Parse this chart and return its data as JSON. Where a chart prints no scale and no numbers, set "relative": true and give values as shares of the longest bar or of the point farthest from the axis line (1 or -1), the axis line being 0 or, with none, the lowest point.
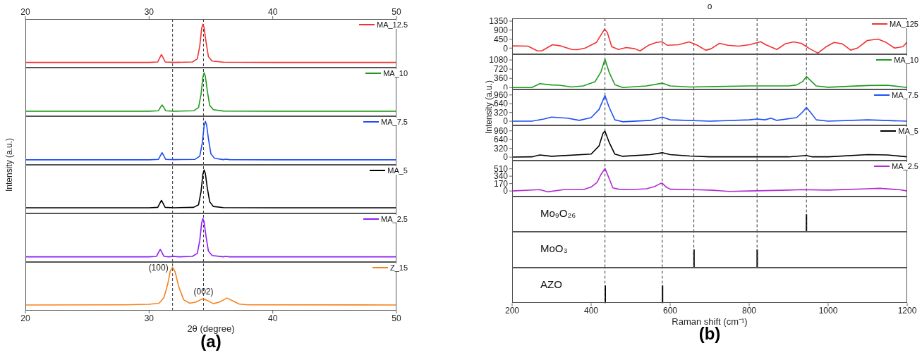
{
  "chart_data": [
    {
      "type": "line",
      "relative": true,
      "xlim": [
        20,
        50
      ],
      "xticks": [
        20,
        30,
        40,
        50
      ],
      "tick_labels": "x",
      "legend": "top right",
      "ref_lines": [
        {
          "axis": "x",
          "value": 31.9,
          "line_style": "dashed"
        },
        {
          "axis": "x",
          "value": 34.4,
          "line_style": "dashed"
        }
      ],
      "series": [
        {
          "name": "MA_12.5",
          "color": "#f03232",
          "x": [
            20,
            30,
            30.7,
            30.9,
            31,
            31.1,
            31.3,
            32,
            33.5,
            33.9,
            34.1,
            34.25,
            34.35,
            34.45,
            34.6,
            34.8,
            35.1,
            36,
            40,
            50
          ],
          "values": [
            0.12,
            0.12,
            0.13,
            0.25,
            0.3,
            0.25,
            0.13,
            0.12,
            0.13,
            0.2,
            0.5,
            0.9,
            1,
            0.92,
            0.6,
            0.25,
            0.15,
            0.125,
            0.12,
            0.12
          ]
        }
      ]
    },
    {
      "type": "line",
      "relative": true,
      "xlim": [
        20,
        50
      ],
      "xticks": [
        20,
        30,
        40,
        50
      ],
      "tick_labels": false,
      "legend": "top right",
      "ref_lines": [
        {
          "axis": "x",
          "value": 31.9,
          "line_style": "dashed"
        },
        {
          "axis": "x",
          "value": 34.4,
          "line_style": "dashed"
        }
      ],
      "series": [
        {
          "name": "MA_10",
          "color": "#1f9b1f",
          "x": [
            20,
            30,
            30.75,
            30.95,
            31.05,
            31.15,
            31.35,
            32,
            33.6,
            34,
            34.2,
            34.35,
            34.45,
            34.55,
            34.7,
            34.9,
            35.2,
            36,
            40,
            50
          ],
          "values": [
            0.115,
            0.115,
            0.125,
            0.22,
            0.26,
            0.22,
            0.125,
            0.115,
            0.125,
            0.2,
            0.5,
            0.9,
            1,
            0.92,
            0.6,
            0.25,
            0.15,
            0.12,
            0.115,
            0.115
          ]
        }
      ]
    },
    {
      "type": "line",
      "relative": true,
      "xlim": [
        20,
        50
      ],
      "xticks": [
        20,
        30,
        40,
        50
      ],
      "tick_labels": false,
      "legend": "top right",
      "ylabel": "Intensity (a.u.)",
      "ref_lines": [
        {
          "axis": "x",
          "value": 31.9,
          "line_style": "dashed"
        },
        {
          "axis": "x",
          "value": 34.4,
          "line_style": "dashed"
        }
      ],
      "series": [
        {
          "name": "MA_7.5",
          "color": "#1f4ff5",
          "x": [
            20,
            30,
            30.75,
            30.95,
            31.05,
            31.15,
            31.35,
            32,
            33.7,
            34.1,
            34.3,
            34.45,
            34.55,
            34.65,
            34.8,
            35,
            35.3,
            36,
            36.2,
            36.5,
            40,
            50
          ],
          "values": [
            0.115,
            0.115,
            0.125,
            0.23,
            0.28,
            0.23,
            0.125,
            0.12,
            0.125,
            0.2,
            0.5,
            0.9,
            1,
            0.92,
            0.6,
            0.25,
            0.15,
            0.12,
            0.13,
            0.12,
            0.115,
            0.115
          ]
        }
      ]
    },
    {
      "type": "line",
      "relative": true,
      "xlim": [
        20,
        50
      ],
      "xticks": [
        20,
        30,
        40,
        50
      ],
      "tick_labels": false,
      "legend": "top right",
      "ref_lines": [
        {
          "axis": "x",
          "value": 31.9,
          "line_style": "dashed"
        },
        {
          "axis": "x",
          "value": 34.4,
          "line_style": "dashed"
        }
      ],
      "series": [
        {
          "name": "MA_5",
          "color": "#000000",
          "x": [
            20,
            30,
            30.7,
            30.9,
            31,
            31.1,
            31.3,
            32,
            33.6,
            34,
            34.2,
            34.35,
            34.45,
            34.55,
            34.7,
            34.9,
            35.2,
            36,
            40,
            50
          ],
          "values": [
            0.13,
            0.13,
            0.14,
            0.25,
            0.3,
            0.25,
            0.14,
            0.13,
            0.14,
            0.2,
            0.5,
            0.9,
            1,
            0.92,
            0.6,
            0.27,
            0.16,
            0.135,
            0.13,
            0.13
          ]
        }
      ]
    },
    {
      "type": "line",
      "relative": true,
      "xlim": [
        20,
        50
      ],
      "xticks": [
        20,
        30,
        40,
        50
      ],
      "tick_labels": false,
      "legend": "top right",
      "ref_lines": [
        {
          "axis": "x",
          "value": 31.9,
          "line_style": "dashed"
        },
        {
          "axis": "x",
          "value": 34.4,
          "line_style": "dashed"
        }
      ],
      "series": [
        {
          "name": "MA_2.5",
          "color": "#8b1ef5",
          "x": [
            20,
            30,
            30.6,
            30.8,
            30.9,
            31,
            31.2,
            31.6,
            32,
            32.4,
            33.5,
            33.9,
            34.1,
            34.25,
            34.35,
            34.45,
            34.6,
            34.8,
            35.1,
            36,
            36.2,
            36.5,
            40,
            50
          ],
          "values": [
            0.12,
            0.12,
            0.13,
            0.24,
            0.29,
            0.24,
            0.13,
            0.12,
            0.13,
            0.12,
            0.13,
            0.2,
            0.5,
            0.9,
            1,
            0.92,
            0.6,
            0.25,
            0.15,
            0.12,
            0.13,
            0.12,
            0.12,
            0.12
          ]
        }
      ]
    },
    {
      "type": "line",
      "relative": true,
      "xlim": [
        20,
        50
      ],
      "xticks": [
        20,
        30,
        40,
        50
      ],
      "tick_labels": "x",
      "xlabel": "2θ (degree)",
      "legend": "top right",
      "annotations": [
        {
          "text": "(100)",
          "x": 31.9,
          "y": 1
        },
        {
          "text": "(002)",
          "x": 34.4,
          "y": 0.27
        },
        "(a)"
      ],
      "ref_lines": [
        {
          "axis": "x",
          "value": 31.9,
          "line_style": "dashed"
        },
        {
          "axis": "x",
          "value": 34.4,
          "line_style": "dashed"
        }
      ],
      "series": [
        {
          "name": "Z_15",
          "color": "#f5841f",
          "x": [
            20,
            28,
            30,
            30.8,
            31.2,
            31.5,
            31.7,
            31.9,
            32.1,
            32.4,
            32.8,
            33.3,
            33.8,
            34.3,
            34.6,
            35.2,
            35.7,
            36.3,
            36.8,
            37.3,
            38,
            50
          ],
          "values": [
            0.13,
            0.135,
            0.145,
            0.17,
            0.3,
            0.6,
            0.9,
            1,
            0.9,
            0.55,
            0.25,
            0.17,
            0.2,
            0.27,
            0.25,
            0.16,
            0.2,
            0.29,
            0.22,
            0.15,
            0.135,
            0.13
          ]
        }
      ]
    },
    {
      "type": "line",
      "title": "o",
      "xlim": [
        200,
        1200
      ],
      "xticks": [
        200,
        400,
        600,
        800,
        1000,
        1200
      ],
      "ylim": [
        -290,
        1490
      ],
      "yticks": [
        0,
        450,
        900,
        1350
      ],
      "tick_labels": "y",
      "legend": "top right",
      "ref_lines": [
        {
          "axis": "x",
          "value": 435,
          "line_style": "dashed"
        },
        {
          "axis": "x",
          "value": 580,
          "line_style": "dashed"
        },
        {
          "axis": "x",
          "value": 660,
          "line_style": "dashed"
        },
        {
          "axis": "x",
          "value": 820,
          "line_style": "dashed"
        },
        {
          "axis": "x",
          "value": 945,
          "line_style": "dashed"
        }
      ],
      "series": [
        {
          "name": "MA_125",
          "color": "#f03232",
          "x": [
            200,
            240,
            264,
            275,
            302,
            323,
            351,
            365,
            385,
            413,
            427,
            434,
            441,
            452,
            469,
            489,
            510,
            524,
            545,
            565,
            579,
            593,
            621,
            648,
            669,
            690,
            704,
            725,
            746,
            773,
            801,
            829,
            842,
            870,
            891,
            912,
            932,
            953,
            974,
            995,
            1015,
            1036,
            1057,
            1074,
            1099,
            1126,
            1147,
            1168,
            1189,
            1199
          ],
          "values": [
            110,
            100,
            -140,
            -140,
            170,
            110,
            -70,
            -80,
            0,
            280,
            730,
            950,
            780,
            70,
            -70,
            30,
            -30,
            -140,
            140,
            280,
            320,
            140,
            170,
            310,
            140,
            -110,
            -30,
            240,
            140,
            100,
            170,
            320,
            170,
            -70,
            210,
            310,
            240,
            -30,
            -250,
            70,
            280,
            210,
            -100,
            0,
            380,
            450,
            280,
            0,
            70,
            280
          ]
        }
      ]
    },
    {
      "type": "line",
      "xlim": [
        200,
        1200
      ],
      "xticks": [
        200,
        400,
        600,
        800,
        1000,
        1200
      ],
      "ylim": [
        -90,
        1305
      ],
      "yticks": [
        0,
        360,
        720,
        1080
      ],
      "tick_labels": "y",
      "legend": "top right",
      "ref_lines": [
        {
          "axis": "x",
          "value": 435,
          "line_style": "dashed"
        },
        {
          "axis": "x",
          "value": 580,
          "line_style": "dashed"
        },
        {
          "axis": "x",
          "value": 660,
          "line_style": "dashed"
        },
        {
          "axis": "x",
          "value": 820,
          "line_style": "dashed"
        },
        {
          "axis": "x",
          "value": 945,
          "line_style": "dashed"
        }
      ],
      "series": [
        {
          "name": "MA_10",
          "color": "#1f9b1f",
          "x": [
            200,
            250,
            270,
            300,
            320,
            350,
            380,
            410,
            425,
            435,
            445,
            460,
            480,
            540,
            580,
            600,
            650,
            800,
            900,
            920,
            935,
            945,
            955,
            970,
            1000,
            1100,
            1150,
            1200
          ],
          "values": [
            0,
            0,
            150,
            100,
            90,
            20,
            60,
            230,
            620,
            1110,
            620,
            110,
            0,
            60,
            170,
            60,
            20,
            60,
            60,
            100,
            230,
            430,
            280,
            60,
            10,
            80,
            90,
            0
          ]
        }
      ]
    },
    {
      "type": "line",
      "xlim": [
        200,
        1200
      ],
      "xticks": [
        200,
        400,
        600,
        800,
        1000,
        1200
      ],
      "ylim": [
        -140,
        1160
      ],
      "yticks": [
        0,
        320,
        640,
        960
      ],
      "tick_labels": "y",
      "legend": "top right",
      "ylabel": "Intensity (a.u.)",
      "ref_lines": [
        {
          "axis": "x",
          "value": 435,
          "line_style": "dashed"
        },
        {
          "axis": "x",
          "value": 580,
          "line_style": "dashed"
        },
        {
          "axis": "x",
          "value": 660,
          "line_style": "dashed"
        },
        {
          "axis": "x",
          "value": 820,
          "line_style": "dashed"
        },
        {
          "axis": "x",
          "value": 945,
          "line_style": "dashed"
        }
      ],
      "series": [
        {
          "name": "MA_7.5",
          "color": "#1f4ff5",
          "x": [
            200,
            250,
            280,
            300,
            320,
            340,
            370,
            400,
            420,
            435,
            445,
            460,
            480,
            550,
            580,
            600,
            700,
            800,
            820,
            840,
            855,
            870,
            920,
            935,
            945,
            955,
            970,
            1000,
            1100,
            1200
          ],
          "values": [
            0,
            0,
            80,
            150,
            130,
            110,
            30,
            130,
            430,
            940,
            530,
            50,
            -20,
            30,
            150,
            50,
            0,
            50,
            80,
            50,
            110,
            30,
            130,
            330,
            500,
            330,
            50,
            0,
            50,
            0
          ]
        }
      ]
    },
    {
      "type": "line",
      "xlim": [
        200,
        1200
      ],
      "xticks": [
        200,
        400,
        600,
        800,
        1000,
        1200
      ],
      "ylim": [
        -140,
        1160
      ],
      "yticks": [
        0,
        320,
        640,
        960
      ],
      "tick_labels": "y",
      "legend": "top right",
      "ref_lines": [
        {
          "axis": "x",
          "value": 435,
          "line_style": "dashed"
        },
        {
          "axis": "x",
          "value": 580,
          "line_style": "dashed"
        },
        {
          "axis": "x",
          "value": 660,
          "line_style": "dashed"
        },
        {
          "axis": "x",
          "value": 820,
          "line_style": "dashed"
        },
        {
          "axis": "x",
          "value": 945,
          "line_style": "dashed"
        }
      ],
      "series": [
        {
          "name": "MA_5",
          "color": "#000000",
          "x": [
            200,
            250,
            270,
            300,
            400,
            420,
            430,
            435,
            445,
            460,
            480,
            550,
            580,
            600,
            650,
            700,
            800,
            900,
            945,
            960,
            1000,
            1100,
            1150,
            1200
          ],
          "values": [
            0,
            10,
            80,
            30,
            110,
            410,
            870,
            950,
            560,
            110,
            30,
            90,
            160,
            90,
            40,
            10,
            10,
            10,
            60,
            10,
            10,
            90,
            80,
            10
          ]
        }
      ]
    },
    {
      "type": "line",
      "xlim": [
        200,
        1200
      ],
      "xticks": [
        200,
        400,
        600,
        800,
        1000,
        1200
      ],
      "ylim": [
        -120,
        700
      ],
      "yticks": [
        0,
        170,
        340,
        510
      ],
      "tick_labels": "y",
      "legend": "top right",
      "ref_lines": [
        {
          "axis": "x",
          "value": 435,
          "line_style": "dashed"
        },
        {
          "axis": "x",
          "value": 580,
          "line_style": "dashed"
        },
        {
          "axis": "x",
          "value": 660,
          "line_style": "dashed"
        },
        {
          "axis": "x",
          "value": 820,
          "line_style": "dashed"
        },
        {
          "axis": "x",
          "value": 945,
          "line_style": "dashed"
        }
      ],
      "series": [
        {
          "name": "MA_2.5",
          "color": "#b02ccf",
          "x": [
            200,
            270,
            290,
            330,
            380,
            400,
            415,
            425,
            435,
            445,
            455,
            470,
            500,
            540,
            560,
            575,
            580,
            590,
            600,
            660,
            700,
            750,
            800,
            900,
            930,
            1000,
            1100,
            1130,
            1180,
            1200
          ],
          "values": [
            0,
            30,
            -20,
            30,
            30,
            90,
            200,
            380,
            520,
            300,
            70,
            40,
            30,
            50,
            100,
            170,
            180,
            90,
            40,
            30,
            20,
            -10,
            0,
            20,
            30,
            20,
            50,
            60,
            30,
            0
          ]
        }
      ]
    },
    {
      "type": "bar",
      "relative": true,
      "xlim": [
        200,
        1200
      ],
      "xticks": [
        200,
        400,
        600,
        800,
        1000,
        1200
      ],
      "tick_labels": false,
      "legend": "left",
      "ref_lines": [
        {
          "axis": "x",
          "value": 435,
          "line_style": "dashed"
        },
        {
          "axis": "x",
          "value": 580,
          "line_style": "dashed"
        },
        {
          "axis": "x",
          "value": 660,
          "line_style": "dashed"
        },
        {
          "axis": "x",
          "value": 820,
          "line_style": "dashed"
        },
        {
          "axis": "x",
          "value": 945,
          "line_style": "dashed"
        }
      ],
      "series": [
        {
          "name": "Mo₉O₂₆",
          "color": "#000000",
          "x": [
            945
          ],
          "values": [
            1
          ]
        }
      ]
    },
    {
      "type": "bar",
      "relative": true,
      "xlim": [
        200,
        1200
      ],
      "xticks": [
        200,
        400,
        600,
        800,
        1000,
        1200
      ],
      "tick_labels": false,
      "legend": "left",
      "ref_lines": [
        {
          "axis": "x",
          "value": 435,
          "line_style": "dashed"
        },
        {
          "axis": "x",
          "value": 580,
          "line_style": "dashed"
        },
        {
          "axis": "x",
          "value": 660,
          "line_style": "dashed"
        },
        {
          "axis": "x",
          "value": 820,
          "line_style": "dashed"
        }
      ],
      "series": [
        {
          "name": "MoO₃",
          "color": "#000000",
          "x": [
            660,
            820
          ],
          "values": [
            1,
            1
          ]
        }
      ]
    },
    {
      "type": "bar",
      "relative": true,
      "xlim": [
        200,
        1200
      ],
      "xticks": [
        200,
        400,
        600,
        800,
        1000,
        1200
      ],
      "tick_labels": "x",
      "xlabel": "Raman shift (cm⁻¹)",
      "legend": "left",
      "annotations": [
        "(b)"
      ],
      "ref_lines": [
        {
          "axis": "x",
          "value": 435,
          "line_style": "dashed"
        },
        {
          "axis": "x",
          "value": 580,
          "line_style": "dashed"
        }
      ],
      "series": [
        {
          "name": "AZO",
          "color": "#000000",
          "x": [
            435,
            580
          ],
          "values": [
            1,
            1
          ]
        }
      ]
    }
  ]
}
